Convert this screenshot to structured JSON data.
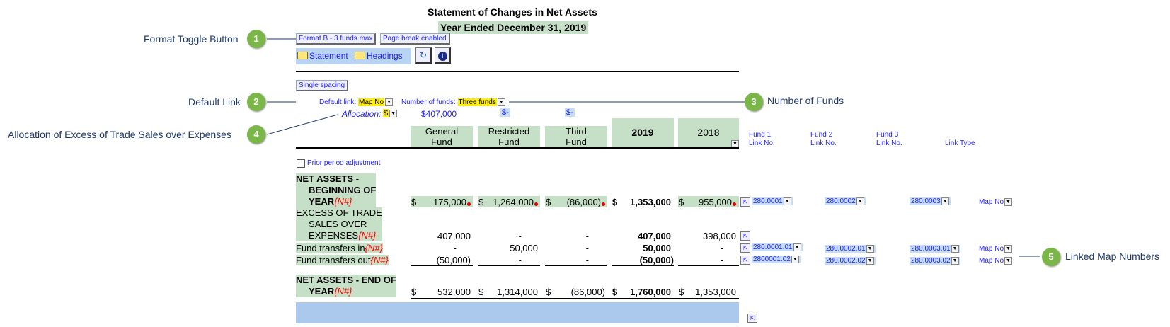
{
  "report": {
    "title": "Statement of Changes in Net Assets",
    "period": "Year Ended December 31, 2019"
  },
  "toolbar": {
    "format_button": "Format B - 3 funds max",
    "page_break_button": "Page break enabled",
    "statement_link": "Statement",
    "headings_link": "Headings",
    "spacing_button": "Single spacing"
  },
  "options": {
    "default_link_label": "Default link:",
    "default_link_value": "Map No",
    "num_funds_label": "Number of funds:",
    "num_funds_value": "Three funds",
    "allocation_label": "Allocation:",
    "allocation_currency": "$",
    "allocation_amount": "$407,000",
    "alloc_fund2": "$-",
    "alloc_fund3": "$-",
    "prior_period": "Prior period adjustment"
  },
  "columns": {
    "fund1": [
      "General",
      "Fund"
    ],
    "fund2": [
      "Restricted",
      "Fund"
    ],
    "fund3": [
      "Third",
      "Fund"
    ],
    "current_year": "2019",
    "prior_year": "2018"
  },
  "link_headers": {
    "fund1": [
      "Fund 1",
      "Link No."
    ],
    "fund2": [
      "Fund 2",
      "Link No."
    ],
    "fund3": [
      "Fund 3",
      "Link No."
    ],
    "type": "Link Type"
  },
  "rows": {
    "beginning": {
      "label": [
        "NET ASSETS -",
        "BEGINNING OF",
        "YEAR"
      ],
      "tag": "{N#}",
      "values": [
        "175,000",
        "1,264,000",
        "(86,000)",
        "1,353,000",
        "955,000"
      ],
      "links": [
        "280.0001",
        "280.0002",
        "280.0003",
        "Map No"
      ]
    },
    "excess": {
      "label": [
        "EXCESS OF TRADE",
        "SALES OVER",
        "EXPENSES"
      ],
      "tag": "{N#}",
      "values": [
        "407,000",
        "-",
        "-",
        "407,000",
        "398,000"
      ]
    },
    "transfers_in": {
      "label": "Fund transfers in",
      "tag": "{N#}",
      "values": [
        "-",
        "50,000",
        "-",
        "50,000",
        "-"
      ],
      "links": [
        "280.0001.01",
        "280.0002.01",
        "280.0003.01",
        "Map No"
      ]
    },
    "transfers_out": {
      "label": "Fund transfers out",
      "tag": "{N#}",
      "values": [
        "(50,000)",
        "-",
        "-",
        "(50,000)",
        "-"
      ],
      "links": [
        "2800001.02",
        "280.0002.02",
        "280.0003.02",
        "Map No"
      ]
    },
    "ending": {
      "label": [
        "NET ASSETS - END OF",
        "YEAR"
      ],
      "tag": "{N#}",
      "values": [
        "532,000",
        "1,314,000",
        "(86,000)",
        "1,760,000",
        "1,353,000"
      ]
    }
  },
  "currency_symbol": "$",
  "callouts": [
    {
      "num": "1",
      "text": "Format Toggle Button"
    },
    {
      "num": "2",
      "text": "Default Link"
    },
    {
      "num": "3",
      "text": "Number of Funds"
    },
    {
      "num": "4",
      "text": "Allocation of Excess of Trade Sales over Expenses"
    },
    {
      "num": "5",
      "text": "Linked Map Numbers"
    }
  ],
  "colors": {
    "header_green": "#c6e0c7",
    "link_blue": "#1f1fff",
    "callout_green": "#7ab648",
    "highlight_yellow": "#ffee00"
  }
}
